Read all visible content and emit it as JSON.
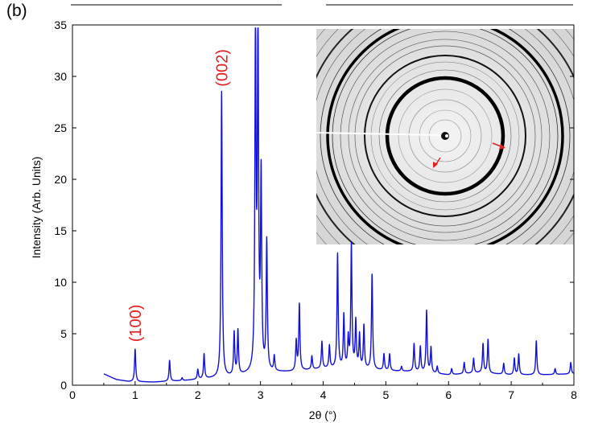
{
  "panel_label": "(b)",
  "chart_data": {
    "type": "line",
    "title": "",
    "xlabel": "2θ (°)",
    "ylabel": "Intensity (Arb. Units)",
    "xlim": [
      0,
      8
    ],
    "ylim": [
      0,
      35
    ],
    "xticks": [
      "0",
      "1",
      "2",
      "3",
      "4",
      "5",
      "6",
      "7",
      "8"
    ],
    "yticks": [
      "0",
      "5",
      "10",
      "15",
      "20",
      "25",
      "30",
      "35"
    ],
    "grid": false,
    "series": [
      {
        "color": "#1010d8",
        "baseline": [
          [
            0.5,
            1.1
          ],
          [
            0.7,
            0.55
          ],
          [
            0.9,
            0.35
          ],
          [
            1.3,
            0.3
          ],
          [
            1.8,
            0.45
          ],
          [
            2.5,
            0.8
          ],
          [
            3.0,
            1.2
          ],
          [
            3.5,
            1.3
          ],
          [
            4.0,
            1.6
          ],
          [
            4.5,
            1.6
          ],
          [
            5.0,
            1.4
          ],
          [
            5.5,
            1.3
          ],
          [
            6.0,
            1.0
          ],
          [
            6.5,
            1.2
          ],
          [
            7.0,
            1.0
          ],
          [
            7.5,
            1.0
          ],
          [
            8.0,
            1.1
          ]
        ],
        "peaks": [
          [
            1.0,
            3.5
          ],
          [
            1.55,
            2.4
          ],
          [
            1.75,
            0.7
          ],
          [
            2.0,
            1.5
          ],
          [
            2.1,
            3.0
          ],
          [
            2.38,
            28.5
          ],
          [
            2.58,
            5.0
          ],
          [
            2.64,
            5.2
          ],
          [
            2.92,
            34.3
          ],
          [
            2.96,
            34.3
          ],
          [
            3.01,
            19.7
          ],
          [
            3.1,
            13.8
          ],
          [
            3.22,
            2.7
          ],
          [
            3.57,
            4.2
          ],
          [
            3.62,
            7.8
          ],
          [
            3.82,
            2.8
          ],
          [
            3.98,
            4.2
          ],
          [
            4.1,
            3.8
          ],
          [
            4.23,
            12.7
          ],
          [
            4.33,
            6.7
          ],
          [
            4.4,
            4.4
          ],
          [
            4.45,
            13.5
          ],
          [
            4.52,
            6.1
          ],
          [
            4.58,
            4.8
          ],
          [
            4.65,
            5.7
          ],
          [
            4.78,
            10.7
          ],
          [
            4.97,
            3.0
          ],
          [
            5.06,
            3.0
          ],
          [
            5.25,
            1.8
          ],
          [
            5.45,
            4.0
          ],
          [
            5.55,
            3.7
          ],
          [
            5.65,
            7.2
          ],
          [
            5.72,
            3.6
          ],
          [
            5.82,
            1.8
          ],
          [
            6.05,
            1.6
          ],
          [
            6.25,
            2.2
          ],
          [
            6.4,
            2.6
          ],
          [
            6.55,
            4.0
          ],
          [
            6.63,
            4.4
          ],
          [
            6.88,
            2.1
          ],
          [
            7.05,
            2.6
          ],
          [
            7.12,
            3.0
          ],
          [
            7.4,
            4.3
          ],
          [
            7.7,
            1.6
          ],
          [
            7.95,
            2.2
          ]
        ]
      }
    ],
    "annotations": [
      {
        "text": "(100)",
        "x": 1.0,
        "y": 4.2,
        "color": "#e02020"
      },
      {
        "text": "(002)",
        "x": 2.38,
        "y": 29.0,
        "color": "#e02020"
      }
    ],
    "inset": {
      "description": "grayscale 2D diffraction ring pattern",
      "arrow_color": "#e02020"
    }
  }
}
